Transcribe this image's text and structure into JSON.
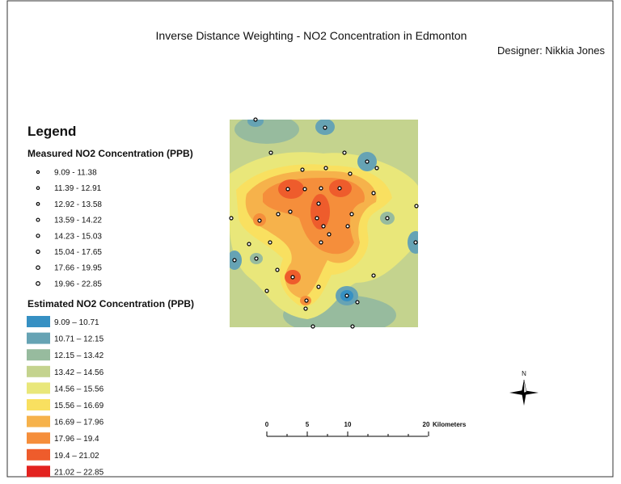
{
  "title": "Inverse Distance Weighting - NO2 Concentration in Edmonton",
  "designer": "Designer: Nikkia Jones",
  "legend": {
    "heading": "Legend",
    "measured": {
      "title": "Measured NO2 Concentration (PPB)",
      "classes": [
        "9.09 - 11.38",
        "11.39 - 12.91",
        "12.92 - 13.58",
        "13.59 - 14.22",
        "14.23 - 15.03",
        "15.04 - 17.65",
        "17.66 - 19.95",
        "19.96 - 22.85"
      ]
    },
    "estimated": {
      "title": "Estimated NO2 Concentration (PPB)",
      "classes": [
        {
          "label": "9.09 – 10.71",
          "color": "#3690c3"
        },
        {
          "label": "10.71 – 12.15",
          "color": "#66a3b4"
        },
        {
          "label": "12.15 – 13.42",
          "color": "#97bb9e"
        },
        {
          "label": "13.42 – 14.56",
          "color": "#c4d38e"
        },
        {
          "label": "14.56 – 15.56",
          "color": "#e9e77a"
        },
        {
          "label": "15.56 – 16.69",
          "color": "#f9e060"
        },
        {
          "label": "16.69 – 17.96",
          "color": "#f6b24b"
        },
        {
          "label": "17.96 – 19.4",
          "color": "#f58e3b"
        },
        {
          "label": "19.4 – 21.02",
          "color": "#ee5c2c"
        },
        {
          "label": "21.02 – 22.85",
          "color": "#e3221f"
        }
      ]
    }
  },
  "scale_bar": {
    "ticks": [
      "0",
      "5",
      "10",
      "20"
    ],
    "unit": "Kilometers"
  },
  "north": "N"
}
